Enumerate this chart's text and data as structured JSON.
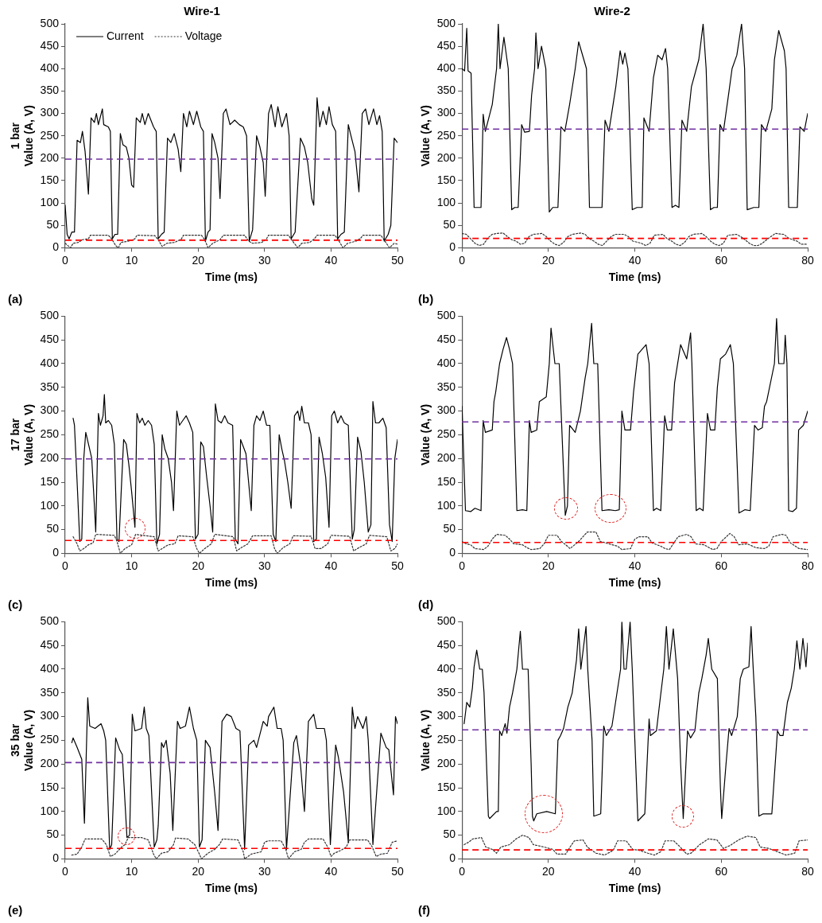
{
  "chart_data": [
    {
      "type": "line",
      "title": "Wire-1",
      "xlabel": "Time (ms)",
      "ylabel": "1 bar\nValue (A, V)",
      "annotations": [
        "(a)"
      ],
      "legend": "top left",
      "xlim": [
        0,
        50
      ],
      "xticks": [
        0,
        10,
        20,
        30,
        40,
        50
      ],
      "ylim": [
        0,
        500
      ],
      "yticks": [
        0,
        50,
        100,
        150,
        200,
        250,
        300,
        350,
        400,
        450,
        500
      ],
      "series": [
        {
          "name": "Current",
          "color": "#000000",
          "line_style": "solid",
          "x": [
            0,
            0.3,
            0.6,
            1.0,
            1.4,
            1.8,
            2.3,
            2.6,
            3.0,
            3.5,
            3.9,
            4.4,
            4.7,
            5.0,
            5.6,
            5.8,
            6.5,
            6.8,
            7.1,
            7.5,
            7.9,
            8.3,
            8.7,
            9.2,
            9.6,
            10.0,
            10.3,
            10.7,
            11.3,
            11.6,
            12.0,
            12.5,
            13.3,
            13.7,
            14.0,
            14.5,
            14.9,
            15.4,
            15.9,
            16.4,
            17.0,
            17.4,
            17.8,
            18.3,
            18.7,
            19.3,
            19.8,
            20.4,
            20.8,
            21.1,
            21.5,
            21.8,
            22.1,
            22.5,
            23.0,
            23.3,
            23.8,
            24.2,
            24.8,
            25.5,
            26.2,
            26.8,
            27.3,
            27.7,
            28.2,
            28.8,
            29.3,
            29.8,
            30.1,
            30.6,
            31.0,
            31.6,
            32.0,
            32.6,
            33.3,
            33.7,
            34.0,
            34.6,
            35.4,
            36.0,
            36.5,
            37.1,
            37.4,
            37.9,
            38.3,
            38.8,
            39.3,
            39.7,
            40.2,
            40.7,
            41.0,
            41.5,
            42.0,
            42.6,
            43.0,
            43.6,
            44.2,
            44.7,
            45.2,
            45.7,
            46.4,
            46.9,
            47.3,
            47.7,
            48.0,
            48.6,
            49.0,
            49.5,
            50.0
          ],
          "values": [
            95,
            30,
            20,
            35,
            35,
            240,
            235,
            260,
            215,
            120,
            290,
            280,
            300,
            275,
            310,
            275,
            270,
            260,
            20,
            30,
            30,
            255,
            230,
            225,
            200,
            140,
            135,
            290,
            280,
            300,
            275,
            300,
            270,
            260,
            20,
            30,
            35,
            245,
            235,
            255,
            220,
            170,
            300,
            270,
            305,
            275,
            305,
            270,
            260,
            15,
            35,
            40,
            255,
            235,
            200,
            110,
            300,
            310,
            275,
            285,
            275,
            270,
            250,
            15,
            40,
            250,
            225,
            190,
            115,
            300,
            320,
            270,
            315,
            270,
            300,
            250,
            20,
            35,
            245,
            225,
            190,
            110,
            95,
            335,
            270,
            305,
            275,
            315,
            275,
            260,
            20,
            30,
            35,
            275,
            250,
            215,
            125,
            300,
            310,
            275,
            310,
            275,
            295,
            260,
            15,
            30,
            50,
            245,
            235
          ]
        },
        {
          "name": "Voltage",
          "color": "#333333",
          "line_style": "dotted",
          "x": [
            0,
            0.8,
            1.2,
            2.0,
            2.6,
            3.5,
            3.8,
            6.5,
            7.0,
            7.6,
            8.0,
            8.4,
            9.6,
            10.5,
            10.8,
            13.5,
            14.0,
            14.6,
            15.3,
            16.5,
            17.5,
            17.8,
            20.5,
            21.0,
            21.5,
            22.2,
            23.3,
            23.8,
            27.0,
            27.6,
            28.2,
            29.6,
            30.3,
            30.6,
            33.6,
            34.2,
            35.0,
            35.6,
            36.8,
            37.5,
            37.9,
            40.6,
            41.2,
            41.8,
            42.5,
            43.8,
            44.5,
            44.8,
            47.5,
            48.1,
            48.8,
            49.5,
            50
          ],
          "values": [
            10,
            0,
            10,
            12,
            18,
            20,
            28,
            28,
            20,
            5,
            0,
            12,
            15,
            20,
            28,
            27,
            18,
            3,
            10,
            12,
            20,
            28,
            28,
            18,
            0,
            10,
            18,
            28,
            28,
            15,
            10,
            12,
            20,
            28,
            28,
            15,
            0,
            10,
            12,
            20,
            28,
            28,
            15,
            0,
            10,
            15,
            22,
            28,
            28,
            15,
            0,
            10,
            8
          ]
        }
      ],
      "ref_lines": [
        {
          "axis": "y",
          "value": 198,
          "color": "#7030a0",
          "line_style": "dashed"
        },
        {
          "axis": "y",
          "value": 17,
          "color": "#ff0000",
          "line_style": "dashed"
        }
      ]
    },
    {
      "type": "line",
      "title": "Wire-2",
      "xlabel": "Time (ms)",
      "ylabel": "Value (A, V)",
      "annotations": [
        "(b)"
      ],
      "xlim": [
        0,
        80
      ],
      "xticks": [
        0,
        20,
        40,
        60,
        80
      ],
      "ylim": [
        0,
        500
      ],
      "yticks": [
        0,
        50,
        100,
        150,
        200,
        250,
        300,
        350,
        400,
        450,
        500
      ],
      "series": [
        {
          "color": "#000000",
          "line_style": "solid",
          "x": [
            0,
            0.6,
            1.1,
            1.4,
            2.1,
            2.8,
            3.5,
            4.4,
            4.9,
            5.4,
            7.0,
            8.0,
            8.4,
            8.8,
            9.7,
            10.7,
            11.5,
            12.2,
            13.0,
            13.8,
            14.5,
            15.6,
            16.1,
            16.8,
            17.1,
            17.6,
            18.4,
            19.4,
            20.2,
            21.0,
            22.2,
            22.9,
            23.8,
            24.9,
            26.2,
            27.0,
            27.6,
            28.8,
            29.5,
            31.0,
            32.4,
            33.1,
            34.0,
            35.6,
            36.6,
            37.2,
            37.7,
            38.4,
            39.4,
            40.5,
            41.7,
            42.1,
            43.3,
            44.3,
            45.3,
            46.3,
            47.1,
            47.6,
            48.6,
            49.4,
            50.2,
            50.9,
            52.0,
            53.1,
            54.8,
            55.8,
            56.5,
            57.5,
            58.3,
            59.1,
            59.7,
            60.5,
            61.8,
            62.5,
            63.6,
            64.7,
            65.4,
            66.0,
            67.5,
            68.7,
            69.3,
            70.3,
            71.7,
            72.3,
            73.3,
            74.6,
            75.0,
            75.6,
            76.6,
            77.6,
            78.2,
            79.2,
            80
          ],
          "values": [
            400,
            395,
            490,
            395,
            390,
            90,
            90,
            90,
            298,
            260,
            320,
            400,
            500,
            400,
            470,
            400,
            85,
            90,
            90,
            275,
            258,
            260,
            340,
            400,
            480,
            400,
            450,
            400,
            80,
            90,
            90,
            270,
            260,
            320,
            400,
            460,
            440,
            400,
            90,
            90,
            90,
            285,
            260,
            360,
            440,
            410,
            435,
            400,
            85,
            90,
            90,
            290,
            260,
            380,
            430,
            420,
            445,
            400,
            90,
            95,
            90,
            285,
            260,
            360,
            420,
            500,
            400,
            85,
            90,
            90,
            275,
            260,
            350,
            400,
            430,
            500,
            400,
            85,
            90,
            90,
            275,
            260,
            310,
            420,
            485,
            440,
            400,
            90,
            90,
            90,
            270,
            260,
            300
          ]
        },
        {
          "color": "#333333",
          "line_style": "dotted",
          "x": [
            0,
            1.0,
            2.0,
            3.0,
            4.0,
            5.0,
            6.0,
            7.0,
            8.0,
            9.5,
            10.5,
            11.5,
            12.5,
            13.5,
            14.5,
            15.5,
            16.5,
            18.5,
            19.5,
            20.5,
            21.5,
            22.5,
            23.5,
            24.5,
            25.5,
            27.5,
            28.5,
            29.5,
            30.5,
            31.5,
            32.5,
            33.5,
            34.5,
            35.5,
            37.5,
            38.5,
            39.5,
            41.5,
            42.5,
            43.5,
            44.5,
            46.5,
            47.5,
            48.5,
            49.5,
            50.5,
            51.5,
            52.5,
            53.5,
            55.5,
            56.5,
            57.5,
            58.5,
            59.5,
            60.5,
            61.5,
            63.5,
            64.5,
            65.5,
            66.5,
            67.5,
            68.5,
            69.5,
            70.5,
            71.5,
            72.5,
            74.5,
            75.5,
            76.5,
            77.5,
            78.5,
            80
          ],
          "values": [
            32,
            30,
            20,
            10,
            5,
            8,
            22,
            30,
            32,
            33,
            25,
            18,
            15,
            8,
            10,
            25,
            30,
            32,
            25,
            15,
            8,
            5,
            12,
            25,
            30,
            33,
            30,
            20,
            15,
            8,
            5,
            15,
            25,
            30,
            30,
            25,
            15,
            10,
            5,
            10,
            28,
            30,
            20,
            15,
            8,
            5,
            12,
            25,
            30,
            32,
            25,
            15,
            8,
            5,
            10,
            28,
            30,
            25,
            18,
            10,
            5,
            5,
            10,
            18,
            25,
            32,
            30,
            22,
            18,
            15,
            8,
            8
          ]
        }
      ],
      "ref_lines": [
        {
          "axis": "y",
          "value": 265,
          "color": "#7030a0",
          "line_style": "dashed"
        },
        {
          "axis": "y",
          "value": 21,
          "color": "#ff0000",
          "line_style": "dashed"
        }
      ]
    },
    {
      "type": "line",
      "xlabel": "Time (ms)",
      "ylabel": "17 bar\nValue (A, V)",
      "annotations": [
        "(c)"
      ],
      "xlim": [
        0,
        50
      ],
      "xticks": [
        0,
        10,
        20,
        30,
        40,
        50
      ],
      "ylim": [
        0,
        500
      ],
      "yticks": [
        0,
        50,
        100,
        150,
        200,
        250,
        300,
        350,
        400,
        450,
        500
      ],
      "series": [
        {
          "color": "#000000",
          "line_style": "solid",
          "x": [
            1.2,
            1.4,
            1.8,
            2.2,
            2.5,
            2.8,
            3.1,
            3.6,
            4.0,
            4.4,
            4.6,
            5.0,
            5.3,
            5.7,
            5.9,
            6.1,
            6.5,
            7.0,
            7.4,
            7.8,
            8.1,
            8.4,
            8.8,
            9.2,
            9.6,
            10.0,
            10.5,
            10.8,
            11.2,
            11.6,
            12.0,
            12.5,
            13.0,
            13.4,
            13.8,
            14.2,
            14.6,
            15.0,
            15.5,
            16.0,
            16.3,
            16.8,
            17.2,
            17.7,
            18.2,
            18.7,
            19.2,
            19.6,
            20.0,
            20.4,
            20.8,
            21.3,
            21.8,
            22.2,
            22.6,
            23.0,
            23.5,
            24.0,
            24.5,
            25.2,
            25.6,
            26.0,
            26.4,
            26.8,
            27.2,
            27.6,
            28.0,
            28.4,
            28.8,
            29.3,
            29.8,
            30.3,
            30.8,
            31.3,
            31.7,
            32.2,
            32.6,
            33.0,
            33.5,
            34.0,
            34.5,
            35.0,
            35.3,
            35.6,
            36.0,
            36.6,
            37.0,
            37.4,
            37.8,
            38.2,
            38.7,
            39.2,
            39.7,
            40.1,
            40.5,
            41.0,
            41.5,
            42.0,
            42.6,
            43.2,
            43.5,
            44.0,
            44.5,
            45.0,
            45.6,
            46.0,
            46.3,
            46.7,
            47.2,
            47.8,
            48.3,
            48.8,
            49.2,
            49.6,
            50
          ],
          "values": [
            285,
            270,
            150,
            25,
            30,
            200,
            255,
            225,
            200,
            100,
            45,
            295,
            270,
            290,
            335,
            275,
            280,
            270,
            230,
            30,
            25,
            120,
            240,
            230,
            185,
            130,
            55,
            295,
            275,
            285,
            270,
            280,
            270,
            230,
            20,
            40,
            250,
            220,
            200,
            150,
            90,
            300,
            270,
            280,
            290,
            275,
            255,
            30,
            40,
            235,
            225,
            160,
            100,
            45,
            315,
            280,
            275,
            290,
            275,
            270,
            30,
            20,
            240,
            225,
            210,
            150,
            90,
            270,
            290,
            280,
            300,
            270,
            270,
            40,
            25,
            250,
            220,
            195,
            150,
            95,
            290,
            300,
            280,
            310,
            275,
            275,
            250,
            25,
            30,
            245,
            210,
            160,
            55,
            290,
            300,
            275,
            290,
            275,
            270,
            30,
            50,
            245,
            215,
            150,
            45,
            60,
            320,
            275,
            275,
            285,
            265,
            60,
            25,
            200,
            240
          ]
        },
        {
          "color": "#333333",
          "line_style": "dotted",
          "x": [
            1.2,
            1.8,
            2.2,
            2.8,
            3.5,
            4.2,
            4.6,
            7.4,
            7.8,
            8.3,
            9.0,
            10.0,
            10.6,
            13.4,
            14.0,
            14.6,
            15.5,
            16.5,
            17.0,
            19.2,
            19.8,
            20.2,
            21.0,
            22.0,
            22.5,
            25.3,
            25.8,
            26.5,
            27.5,
            28.2,
            31.0,
            31.5,
            31.9,
            32.8,
            33.8,
            34.3,
            37.0,
            37.6,
            38.5,
            39.5,
            40.0,
            42.8,
            43.4,
            44.2,
            45.3,
            45.8,
            48.4,
            49.0,
            49.6,
            50
          ],
          "values": [
            35,
            20,
            5,
            10,
            18,
            22,
            40,
            38,
            25,
            0,
            10,
            18,
            40,
            35,
            5,
            10,
            18,
            20,
            37,
            35,
            10,
            0,
            10,
            20,
            40,
            35,
            5,
            12,
            20,
            37,
            37,
            10,
            0,
            12,
            20,
            37,
            36,
            10,
            10,
            20,
            38,
            36,
            5,
            12,
            20,
            38,
            35,
            5,
            10,
            20
          ]
        }
      ],
      "ref_lines": [
        {
          "axis": "y",
          "value": 199,
          "color": "#7030a0",
          "line_style": "dashed"
        },
        {
          "axis": "y",
          "value": 27,
          "color": "#ff0000",
          "line_style": "dashed"
        }
      ]
    },
    {
      "type": "line",
      "xlabel": "Time (ms)",
      "ylabel": "Value (A, V)",
      "annotations": [
        "(d)"
      ],
      "xlim": [
        0,
        80
      ],
      "xticks": [
        0,
        20,
        40,
        60,
        80
      ],
      "ylim": [
        0,
        500
      ],
      "yticks": [
        0,
        50,
        100,
        150,
        200,
        250,
        300,
        350,
        400,
        450,
        500
      ],
      "series": [
        {
          "color": "#000000",
          "line_style": "solid",
          "x": [
            0,
            0.8,
            2.0,
            3.0,
            4.4,
            4.9,
            5.4,
            7.0,
            7.4,
            7.8,
            8.7,
            9.5,
            10.3,
            11.0,
            11.7,
            12.7,
            14.0,
            15.0,
            15.6,
            16.0,
            17.3,
            17.9,
            19.5,
            20.2,
            20.6,
            21.5,
            22.5,
            23.9,
            24.4,
            24.9,
            26.2,
            27.4,
            28.5,
            29.1,
            30.0,
            30.5,
            31.4,
            32.4,
            34.0,
            35.5,
            36.4,
            37.0,
            37.7,
            39.0,
            39.7,
            40.7,
            42.6,
            43.3,
            44.3,
            45.0,
            46.0,
            46.9,
            47.5,
            48.5,
            49.2,
            50.6,
            52.0,
            52.9,
            53.2,
            54.2,
            55.0,
            55.8,
            56.8,
            57.5,
            58.5,
            59.1,
            59.8,
            61.0,
            62.1,
            62.8,
            64.1,
            65.5,
            66.7,
            67.7,
            68.5,
            69.5,
            70.0,
            70.5,
            72.3,
            72.8,
            73.3,
            74.5,
            74.8,
            75.2,
            75.6,
            76.5,
            77.4,
            77.9,
            79.0,
            80
          ],
          "values": [
            310,
            90,
            88,
            95,
            90,
            280,
            255,
            260,
            320,
            340,
            400,
            430,
            455,
            430,
            400,
            90,
            92,
            90,
            280,
            255,
            260,
            320,
            330,
            400,
            475,
            400,
            400,
            80,
            100,
            270,
            255,
            300,
            370,
            400,
            485,
            400,
            400,
            90,
            92,
            90,
            92,
            300,
            260,
            260,
            340,
            420,
            440,
            400,
            90,
            95,
            90,
            290,
            260,
            260,
            360,
            440,
            410,
            465,
            400,
            90,
            95,
            90,
            295,
            260,
            260,
            350,
            410,
            420,
            440,
            400,
            85,
            92,
            90,
            270,
            260,
            265,
            310,
            320,
            400,
            495,
            400,
            400,
            460,
            400,
            90,
            88,
            95,
            260,
            270,
            300
          ]
        },
        {
          "color": "#333333",
          "line_style": "dotted",
          "x": [
            0,
            1,
            2,
            3,
            5,
            6,
            7,
            8,
            10,
            11,
            12,
            14,
            15,
            16,
            18,
            19,
            20,
            22,
            23,
            24,
            25,
            27,
            29,
            31,
            32,
            34,
            36,
            37,
            39,
            40,
            41,
            43,
            44,
            46,
            47,
            48,
            50,
            52,
            53,
            54,
            56,
            58,
            59,
            60,
            62,
            63,
            64,
            66,
            68,
            70,
            71,
            72,
            74,
            75,
            76,
            78,
            80
          ],
          "values": [
            25,
            20,
            18,
            10,
            8,
            15,
            30,
            40,
            38,
            30,
            20,
            18,
            12,
            8,
            10,
            20,
            38,
            38,
            25,
            18,
            10,
            25,
            45,
            45,
            25,
            20,
            15,
            8,
            10,
            30,
            35,
            35,
            22,
            15,
            10,
            8,
            35,
            40,
            35,
            20,
            18,
            8,
            10,
            25,
            42,
            35,
            18,
            20,
            12,
            10,
            15,
            35,
            40,
            38,
            22,
            10,
            8
          ]
        }
      ],
      "ref_lines": [
        {
          "axis": "y",
          "value": 277,
          "color": "#7030a0",
          "line_style": "dashed"
        },
        {
          "axis": "y",
          "value": 23,
          "color": "#ff0000",
          "line_style": "dashed"
        }
      ]
    },
    {
      "type": "line",
      "xlabel": "Time (ms)",
      "ylabel": "35 bar\nValue (A, V)",
      "annotations": [
        "(e)"
      ],
      "xlim": [
        0,
        50
      ],
      "xticks": [
        0,
        10,
        20,
        30,
        40,
        50
      ],
      "ylim": [
        0,
        500
      ],
      "yticks": [
        0,
        50,
        100,
        150,
        200,
        250,
        300,
        350,
        400,
        450,
        500
      ],
      "series": [
        {
          "color": "#000000",
          "line_style": "solid",
          "x": [
            1.0,
            1.2,
            1.8,
            2.5,
            2.9,
            3.4,
            3.7,
            4.5,
            5.4,
            5.8,
            6.1,
            6.7,
            7.0,
            7.6,
            8.2,
            8.6,
            9.3,
            9.7,
            10.1,
            10.5,
            11.5,
            11.9,
            12.2,
            12.6,
            13.4,
            13.8,
            14.0,
            14.5,
            14.8,
            15.2,
            15.8,
            16.2,
            16.9,
            17.3,
            18.1,
            18.7,
            19.3,
            19.8,
            20.2,
            20.6,
            21.1,
            21.8,
            22.5,
            23.0,
            23.6,
            24.3,
            25.0,
            25.7,
            26.3,
            27.0,
            27.6,
            28.4,
            28.8,
            29.8,
            30.4,
            30.6,
            31.4,
            31.9,
            32.5,
            32.8,
            33.3,
            34.4,
            34.8,
            35.4,
            36.0,
            36.6,
            37.4,
            37.8,
            39.0,
            39.3,
            39.9,
            40.7,
            41.1,
            41.9,
            42.6,
            43.2,
            43.6,
            44.0,
            44.8,
            45.3,
            45.6,
            46.3,
            47.5,
            48.3,
            48.7,
            49.4,
            49.7,
            50
          ],
          "values": [
            245,
            255,
            235,
            210,
            75,
            340,
            280,
            275,
            285,
            270,
            250,
            20,
            30,
            255,
            230,
            220,
            45,
            50,
            305,
            270,
            275,
            320,
            275,
            260,
            25,
            40,
            70,
            245,
            235,
            250,
            180,
            60,
            290,
            275,
            280,
            320,
            275,
            250,
            25,
            40,
            250,
            235,
            140,
            60,
            290,
            305,
            300,
            275,
            270,
            20,
            240,
            250,
            235,
            290,
            280,
            300,
            320,
            275,
            275,
            250,
            20,
            245,
            260,
            200,
            100,
            290,
            305,
            275,
            275,
            250,
            30,
            240,
            215,
            140,
            35,
            320,
            275,
            300,
            275,
            300,
            250,
            30,
            265,
            235,
            230,
            135,
            300,
            285
          ]
        },
        {
          "color": "#333333",
          "line_style": "dotted",
          "x": [
            1.0,
            1.8,
            2.5,
            3.0,
            5.5,
            6.2,
            6.8,
            7.5,
            8.5,
            9.0,
            9.5,
            11.5,
            12.5,
            13.3,
            13.7,
            14.5,
            15.5,
            16.3,
            16.6,
            18.5,
            19.5,
            20.2,
            20.5,
            21.5,
            22.5,
            23.2,
            23.7,
            26.0,
            26.8,
            27.0,
            28.0,
            29.5,
            30.0,
            30.5,
            32.5,
            33.2,
            33.6,
            34.5,
            35.5,
            36.0,
            36.6,
            38.8,
            39.5,
            40.0,
            40.5,
            41.5,
            42.3,
            42.8,
            45.5,
            46.2,
            46.8,
            47.5,
            48.5,
            49.2,
            50
          ],
          "values": [
            8,
            10,
            25,
            42,
            42,
            30,
            5,
            10,
            25,
            30,
            45,
            45,
            40,
            10,
            0,
            12,
            15,
            30,
            44,
            42,
            30,
            10,
            0,
            12,
            20,
            30,
            42,
            40,
            15,
            0,
            10,
            15,
            35,
            38,
            38,
            20,
            0,
            15,
            20,
            35,
            42,
            42,
            25,
            5,
            12,
            18,
            25,
            40,
            40,
            25,
            5,
            10,
            12,
            35,
            38
          ]
        }
      ],
      "ref_lines": [
        {
          "axis": "y",
          "value": 203,
          "color": "#7030a0",
          "line_style": "dashed"
        },
        {
          "axis": "y",
          "value": 22,
          "color": "#ff0000",
          "line_style": "dashed"
        }
      ]
    },
    {
      "type": "line",
      "xlabel": "Time (ms)",
      "ylabel": "Value (A, V)",
      "annotations": [
        "(f)"
      ],
      "xlim": [
        0,
        80
      ],
      "xticks": [
        0,
        20,
        40,
        60,
        80
      ],
      "ylim": [
        0,
        500
      ],
      "yticks": [
        0,
        50,
        100,
        150,
        200,
        250,
        300,
        350,
        400,
        450,
        500
      ],
      "series": [
        {
          "color": "#000000",
          "line_style": "solid",
          "x": [
            0.5,
            1.1,
            1.8,
            2.4,
            2.8,
            3.4,
            4.1,
            4.7,
            5.1,
            6.1,
            6.4,
            8.0,
            8.4,
            8.7,
            9.2,
            10.0,
            10.4,
            11.0,
            11.7,
            12.7,
            13.5,
            14.0,
            15.3,
            16.0,
            16.3,
            16.6,
            17.3,
            19.6,
            21.6,
            22.2,
            22.8,
            23.5,
            24.5,
            25.5,
            26.5,
            27.0,
            27.5,
            28.7,
            29.1,
            30.1,
            30.5,
            32.1,
            32.8,
            33.4,
            34.7,
            35.7,
            36.7,
            37.0,
            37.5,
            38.0,
            38.9,
            39.4,
            40.0,
            40.7,
            42.3,
            43.3,
            43.6,
            45.0,
            45.9,
            46.7,
            47.3,
            47.9,
            48.9,
            49.9,
            50.6,
            51.2,
            52.2,
            52.9,
            53.9,
            54.8,
            55.5,
            56.5,
            57.0,
            57.8,
            59.1,
            59.8,
            60.1,
            61.1,
            61.8,
            62.4,
            63.7,
            64.4,
            65.1,
            66.4,
            66.9,
            67.4,
            68.0,
            68.7,
            69.7,
            71.7,
            73.0,
            73.6,
            74.3,
            75.3,
            76.2,
            76.9,
            77.5,
            78.2,
            78.9,
            79.6,
            80
          ],
          "values": [
            285,
            330,
            320,
            360,
            405,
            440,
            400,
            400,
            350,
            90,
            85,
            100,
            100,
            270,
            260,
            285,
            265,
            320,
            350,
            400,
            480,
            400,
            400,
            200,
            90,
            80,
            95,
            100,
            95,
            250,
            260,
            275,
            320,
            350,
            420,
            485,
            400,
            490,
            400,
            250,
            90,
            95,
            280,
            260,
            280,
            340,
            400,
            500,
            400,
            400,
            500,
            400,
            250,
            80,
            95,
            295,
            260,
            270,
            340,
            400,
            490,
            400,
            485,
            380,
            200,
            85,
            270,
            255,
            270,
            350,
            380,
            430,
            465,
            400,
            380,
            150,
            85,
            200,
            275,
            260,
            300,
            380,
            400,
            405,
            490,
            400,
            300,
            90,
            95,
            95,
            270,
            260,
            260,
            330,
            360,
            400,
            460,
            400,
            465,
            405,
            455
          ]
        },
        {
          "color": "#333333",
          "line_style": "dotted",
          "x": [
            0.5,
            1.5,
            2.5,
            4.5,
            5.5,
            7,
            8,
            9,
            11,
            12.5,
            14,
            15.5,
            16.5,
            19,
            21,
            22,
            24,
            25,
            26,
            28,
            29,
            31,
            33,
            35,
            36,
            38,
            39.5,
            41,
            43,
            44.5,
            46,
            47,
            49,
            50.5,
            52,
            53,
            55,
            57,
            59,
            60.5,
            62,
            64,
            66,
            68,
            69,
            71,
            73,
            75,
            77,
            78,
            80
          ],
          "values": [
            30,
            35,
            42,
            45,
            25,
            20,
            12,
            25,
            30,
            42,
            50,
            45,
            30,
            25,
            20,
            10,
            10,
            25,
            38,
            40,
            25,
            12,
            8,
            18,
            38,
            38,
            20,
            18,
            12,
            8,
            15,
            38,
            38,
            25,
            10,
            12,
            30,
            42,
            40,
            22,
            28,
            40,
            48,
            45,
            25,
            22,
            15,
            8,
            12,
            38,
            40
          ]
        }
      ],
      "ref_lines": [
        {
          "axis": "y",
          "value": 272,
          "color": "#7030a0",
          "line_style": "dashed"
        },
        {
          "axis": "y",
          "value": 19,
          "color": "#ff0000",
          "line_style": "dashed"
        }
      ]
    }
  ]
}
